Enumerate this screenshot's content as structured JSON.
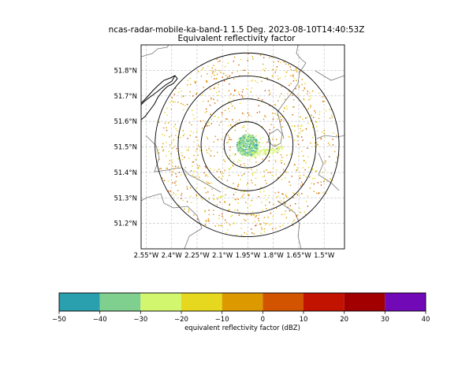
{
  "title_line1": "ncas-radar-mobile-ka-band-1 1.5 Deg. 2023-08-10T14:40:53Z",
  "title_line2": "Equivalent reflectivity factor",
  "chart_data": [
    {
      "type": "map",
      "x_ticks": [
        -2.55,
        -2.4,
        -2.25,
        -2.1,
        -1.95,
        -1.8,
        -1.65,
        -1.5
      ],
      "x_tick_labels": [
        "2.55°W",
        "2.4°W",
        "2.25°W",
        "2.1°W",
        "1.95°W",
        "1.8°W",
        "1.65°W",
        "1.5°W"
      ],
      "y_ticks": [
        51.2,
        51.3,
        51.4,
        51.5,
        51.6,
        51.7,
        51.8
      ],
      "y_tick_labels": [
        "51.2°N",
        "51.3°N",
        "51.4°N",
        "51.5°N",
        "51.6°N",
        "51.7°N",
        "51.8°N"
      ],
      "xlim": [
        -2.58,
        -1.38
      ],
      "ylim": [
        51.1,
        51.9
      ],
      "grid": true,
      "radar_center": [
        -1.955,
        51.508
      ],
      "range_ring_radii_km": [
        10,
        20,
        30,
        40
      ]
    },
    {
      "type": "colorbar",
      "bounds": [
        -50,
        -40,
        -30,
        -20,
        -10,
        0,
        10,
        20,
        30,
        40
      ],
      "tick_labels": [
        "−50",
        "−40",
        "−30",
        "−20",
        "−10",
        "0",
        "10",
        "20",
        "30",
        "40"
      ],
      "colors": [
        "#2a9fad",
        "#7fd08e",
        "#d2f76e",
        "#e5d81e",
        "#dd9a00",
        "#d25400",
        "#c21200",
        "#a20000",
        "#7209b7"
      ],
      "label": "equivalent reflectivity factor (dBZ)"
    }
  ]
}
